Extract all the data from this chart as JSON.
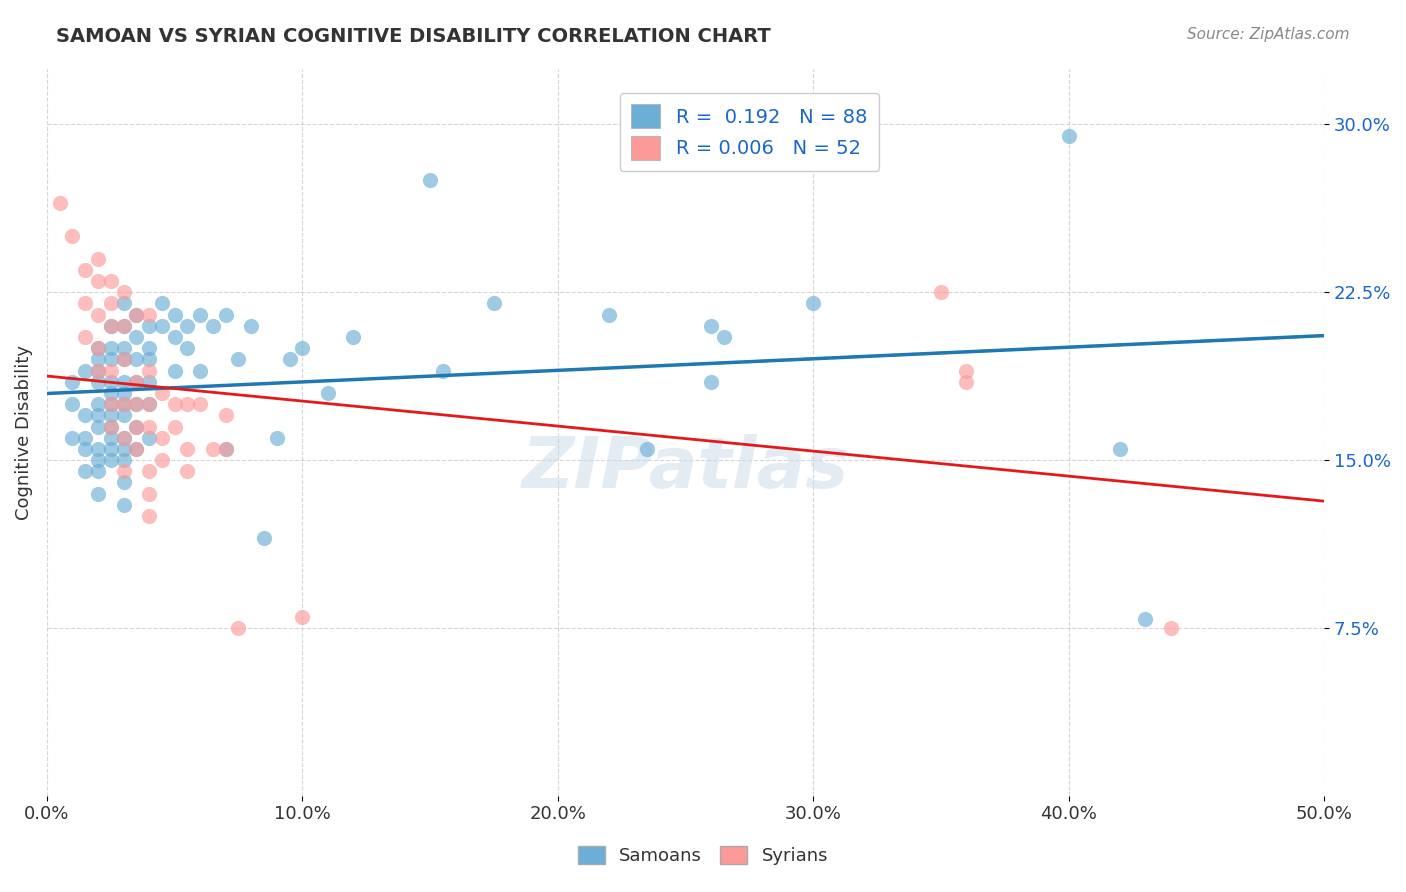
{
  "title": "SAMOAN VS SYRIAN COGNITIVE DISABILITY CORRELATION CHART",
  "source": "Source: ZipAtlas.com",
  "xlabel_bottom": "",
  "ylabel": "Cognitive Disability",
  "x_min": 0.0,
  "x_max": 0.5,
  "y_min": 0.0,
  "y_max": 0.325,
  "x_ticks": [
    0.0,
    0.1,
    0.2,
    0.3,
    0.4,
    0.5
  ],
  "x_tick_labels": [
    "0.0%",
    "10.0%",
    "20.0%",
    "30.0%",
    "40.0%",
    "50.0%"
  ],
  "y_ticks": [
    0.075,
    0.15,
    0.225,
    0.3
  ],
  "y_tick_labels": [
    "7.5%",
    "15.0%",
    "22.5%",
    "30.0%"
  ],
  "samoan_color": "#6baed6",
  "syrian_color": "#fb9a99",
  "samoan_R": 0.192,
  "samoan_N": 88,
  "syrian_R": 0.006,
  "syrian_N": 52,
  "samoan_line_color": "#1f78b4",
  "syrian_line_color": "#e31a1c",
  "dashed_line_color": "#aaaaaa",
  "watermark": "ZIPatlas",
  "legend_color": "#1a66cc",
  "samoan_scatter": [
    [
      0.01,
      0.175
    ],
    [
      0.01,
      0.185
    ],
    [
      0.01,
      0.16
    ],
    [
      0.015,
      0.19
    ],
    [
      0.015,
      0.17
    ],
    [
      0.015,
      0.16
    ],
    [
      0.015,
      0.155
    ],
    [
      0.015,
      0.145
    ],
    [
      0.02,
      0.2
    ],
    [
      0.02,
      0.195
    ],
    [
      0.02,
      0.19
    ],
    [
      0.02,
      0.185
    ],
    [
      0.02,
      0.175
    ],
    [
      0.02,
      0.17
    ],
    [
      0.02,
      0.165
    ],
    [
      0.02,
      0.155
    ],
    [
      0.02,
      0.15
    ],
    [
      0.02,
      0.145
    ],
    [
      0.02,
      0.135
    ],
    [
      0.025,
      0.21
    ],
    [
      0.025,
      0.2
    ],
    [
      0.025,
      0.195
    ],
    [
      0.025,
      0.185
    ],
    [
      0.025,
      0.18
    ],
    [
      0.025,
      0.175
    ],
    [
      0.025,
      0.17
    ],
    [
      0.025,
      0.165
    ],
    [
      0.025,
      0.16
    ],
    [
      0.025,
      0.155
    ],
    [
      0.025,
      0.15
    ],
    [
      0.03,
      0.22
    ],
    [
      0.03,
      0.21
    ],
    [
      0.03,
      0.2
    ],
    [
      0.03,
      0.195
    ],
    [
      0.03,
      0.185
    ],
    [
      0.03,
      0.18
    ],
    [
      0.03,
      0.175
    ],
    [
      0.03,
      0.17
    ],
    [
      0.03,
      0.16
    ],
    [
      0.03,
      0.155
    ],
    [
      0.03,
      0.15
    ],
    [
      0.03,
      0.14
    ],
    [
      0.03,
      0.13
    ],
    [
      0.035,
      0.215
    ],
    [
      0.035,
      0.205
    ],
    [
      0.035,
      0.195
    ],
    [
      0.035,
      0.185
    ],
    [
      0.035,
      0.175
    ],
    [
      0.035,
      0.165
    ],
    [
      0.035,
      0.155
    ],
    [
      0.04,
      0.21
    ],
    [
      0.04,
      0.2
    ],
    [
      0.04,
      0.195
    ],
    [
      0.04,
      0.185
    ],
    [
      0.04,
      0.175
    ],
    [
      0.04,
      0.16
    ],
    [
      0.045,
      0.22
    ],
    [
      0.045,
      0.21
    ],
    [
      0.05,
      0.215
    ],
    [
      0.05,
      0.205
    ],
    [
      0.05,
      0.19
    ],
    [
      0.055,
      0.21
    ],
    [
      0.055,
      0.2
    ],
    [
      0.06,
      0.215
    ],
    [
      0.06,
      0.19
    ],
    [
      0.065,
      0.21
    ],
    [
      0.07,
      0.215
    ],
    [
      0.07,
      0.155
    ],
    [
      0.075,
      0.195
    ],
    [
      0.08,
      0.21
    ],
    [
      0.085,
      0.115
    ],
    [
      0.09,
      0.16
    ],
    [
      0.095,
      0.195
    ],
    [
      0.1,
      0.2
    ],
    [
      0.11,
      0.18
    ],
    [
      0.12,
      0.205
    ],
    [
      0.15,
      0.275
    ],
    [
      0.155,
      0.19
    ],
    [
      0.175,
      0.22
    ],
    [
      0.22,
      0.215
    ],
    [
      0.235,
      0.155
    ],
    [
      0.26,
      0.21
    ],
    [
      0.26,
      0.185
    ],
    [
      0.265,
      0.205
    ],
    [
      0.3,
      0.22
    ],
    [
      0.4,
      0.295
    ],
    [
      0.42,
      0.155
    ],
    [
      0.43,
      0.079
    ]
  ],
  "syrian_scatter": [
    [
      0.005,
      0.265
    ],
    [
      0.01,
      0.25
    ],
    [
      0.015,
      0.235
    ],
    [
      0.015,
      0.22
    ],
    [
      0.015,
      0.205
    ],
    [
      0.02,
      0.24
    ],
    [
      0.02,
      0.23
    ],
    [
      0.02,
      0.215
    ],
    [
      0.02,
      0.2
    ],
    [
      0.02,
      0.19
    ],
    [
      0.025,
      0.23
    ],
    [
      0.025,
      0.22
    ],
    [
      0.025,
      0.21
    ],
    [
      0.025,
      0.19
    ],
    [
      0.025,
      0.175
    ],
    [
      0.025,
      0.165
    ],
    [
      0.03,
      0.225
    ],
    [
      0.03,
      0.21
    ],
    [
      0.03,
      0.195
    ],
    [
      0.03,
      0.175
    ],
    [
      0.03,
      0.16
    ],
    [
      0.03,
      0.145
    ],
    [
      0.035,
      0.215
    ],
    [
      0.035,
      0.185
    ],
    [
      0.035,
      0.175
    ],
    [
      0.035,
      0.165
    ],
    [
      0.035,
      0.155
    ],
    [
      0.04,
      0.215
    ],
    [
      0.04,
      0.19
    ],
    [
      0.04,
      0.175
    ],
    [
      0.04,
      0.165
    ],
    [
      0.04,
      0.145
    ],
    [
      0.04,
      0.135
    ],
    [
      0.04,
      0.125
    ],
    [
      0.045,
      0.18
    ],
    [
      0.045,
      0.16
    ],
    [
      0.045,
      0.15
    ],
    [
      0.05,
      0.175
    ],
    [
      0.05,
      0.165
    ],
    [
      0.055,
      0.175
    ],
    [
      0.055,
      0.155
    ],
    [
      0.055,
      0.145
    ],
    [
      0.06,
      0.175
    ],
    [
      0.065,
      0.155
    ],
    [
      0.07,
      0.17
    ],
    [
      0.07,
      0.155
    ],
    [
      0.075,
      0.075
    ],
    [
      0.1,
      0.08
    ],
    [
      0.35,
      0.225
    ],
    [
      0.36,
      0.19
    ],
    [
      0.36,
      0.185
    ],
    [
      0.44,
      0.075
    ]
  ]
}
